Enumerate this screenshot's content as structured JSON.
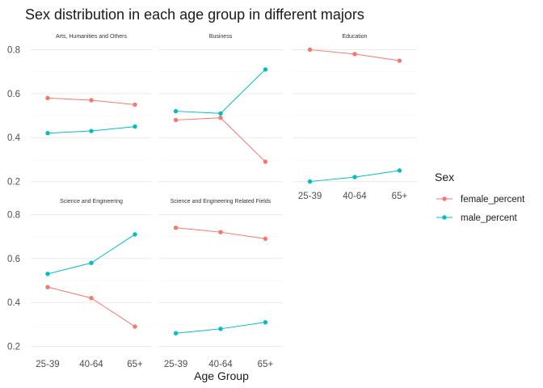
{
  "chart_data": {
    "type": "line",
    "title": "Sex distribution in each age group in different majors",
    "xlabel": "Age Group",
    "ylabel": "",
    "categories": [
      "25-39",
      "40-64",
      "65+"
    ],
    "ylim": [
      0.18,
      0.82
    ],
    "yticks": [
      "0.2",
      "0.4",
      "0.6",
      "0.8"
    ],
    "grid": true,
    "legend": {
      "title": "Sex",
      "position": "right",
      "entries": [
        {
          "name": "female_percent",
          "color": "#F8766D"
        },
        {
          "name": "male_percent",
          "color": "#00BFC4"
        }
      ]
    },
    "panels": [
      {
        "name": "Arts, Humanities and Others",
        "series": [
          {
            "name": "female_percent",
            "values": [
              0.58,
              0.57,
              0.55
            ]
          },
          {
            "name": "male_percent",
            "values": [
              0.42,
              0.43,
              0.45
            ]
          }
        ]
      },
      {
        "name": "Business",
        "series": [
          {
            "name": "female_percent",
            "values": [
              0.48,
              0.49,
              0.29
            ]
          },
          {
            "name": "male_percent",
            "values": [
              0.52,
              0.51,
              0.71
            ]
          }
        ]
      },
      {
        "name": "Education",
        "series": [
          {
            "name": "female_percent",
            "values": [
              0.8,
              0.78,
              0.75
            ]
          },
          {
            "name": "male_percent",
            "values": [
              0.2,
              0.22,
              0.25
            ]
          }
        ]
      },
      {
        "name": "Science and Engineering",
        "series": [
          {
            "name": "female_percent",
            "values": [
              0.47,
              0.42,
              0.29
            ]
          },
          {
            "name": "male_percent",
            "values": [
              0.53,
              0.58,
              0.71
            ]
          }
        ]
      },
      {
        "name": "Science and Engineering Related Fields",
        "series": [
          {
            "name": "female_percent",
            "values": [
              0.74,
              0.72,
              0.69
            ]
          },
          {
            "name": "male_percent",
            "values": [
              0.26,
              0.28,
              0.31
            ]
          }
        ]
      }
    ]
  }
}
